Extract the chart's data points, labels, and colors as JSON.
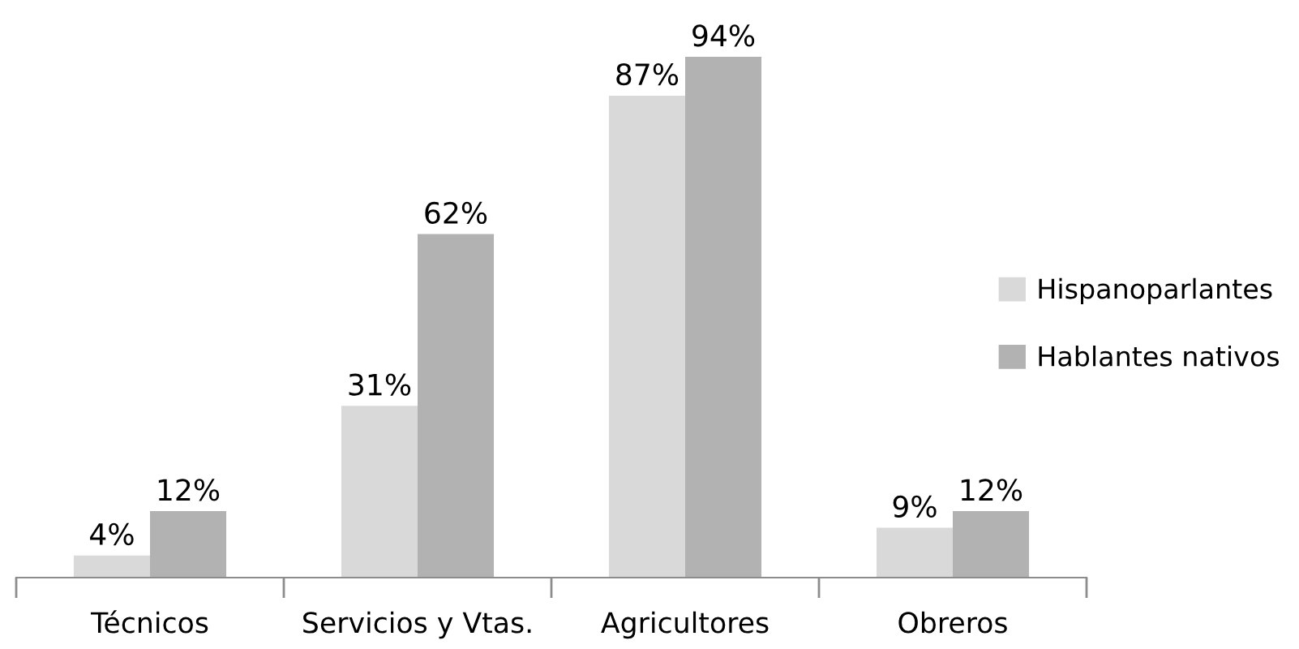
{
  "chart_data": {
    "type": "bar",
    "categories": [
      "Técnicos",
      "Servicios y Vtas.",
      "Agricultores",
      "Obreros"
    ],
    "series": [
      {
        "name": "Hispanoparlantes",
        "color": "#d9d9d9",
        "values": [
          4,
          31,
          87,
          9
        ],
        "value_labels": [
          "4%",
          "31%",
          "87%",
          "9%"
        ]
      },
      {
        "name": "Hablantes nativos",
        "color": "#b2b2b2",
        "values": [
          12,
          62,
          94,
          12
        ],
        "value_labels": [
          "12%",
          "62%",
          "94%",
          "12%"
        ]
      }
    ],
    "legend": "right",
    "tick_labels": "x"
  }
}
